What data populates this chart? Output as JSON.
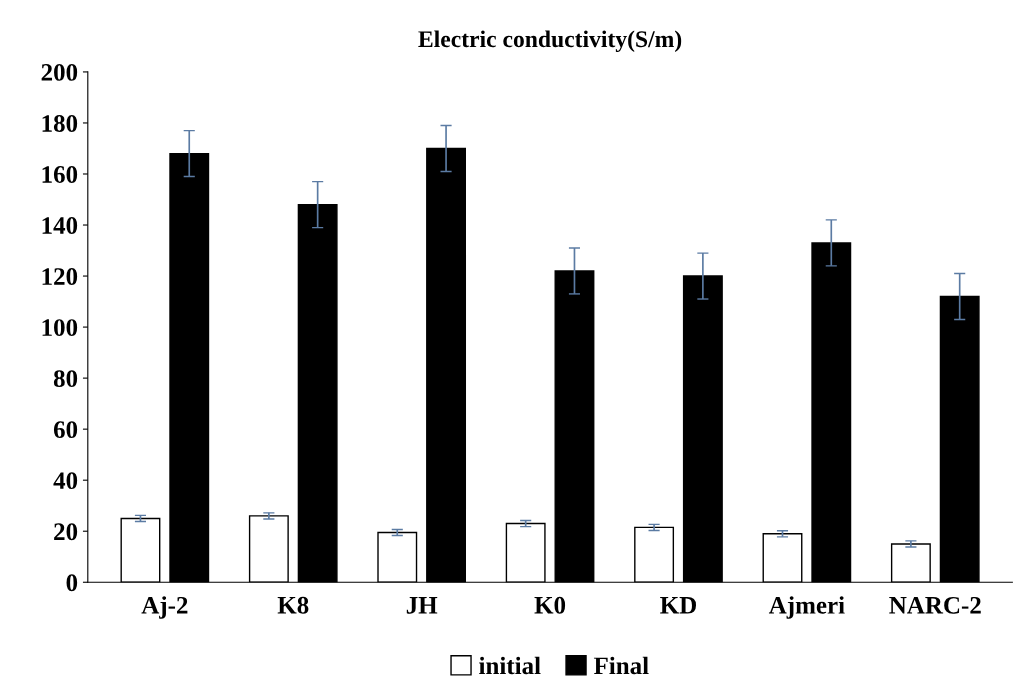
{
  "chart_data": {
    "type": "bar",
    "title": "Electric conductivity(S/m)",
    "categories": [
      "Aj-2",
      "K8",
      "JH",
      "K0",
      "KD",
      "Ajmeri",
      "NARC-2"
    ],
    "series": [
      {
        "name": "initial",
        "color": "#ffffff",
        "values": [
          25,
          26,
          19.5,
          23,
          21.5,
          19,
          15
        ],
        "errors": [
          1.2,
          1.2,
          1.2,
          1.2,
          1.2,
          1.2,
          1.2
        ]
      },
      {
        "name": "Final",
        "color": "#000000",
        "values": [
          168,
          148,
          170,
          122,
          120,
          133,
          112
        ],
        "errors": [
          9,
          9,
          9,
          9,
          9,
          9,
          9
        ]
      }
    ],
    "ylim": [
      0,
      200
    ],
    "yticks": [
      0,
      20,
      40,
      60,
      80,
      100,
      120,
      140,
      160,
      180,
      200
    ],
    "grid": false,
    "legend": "bottom"
  }
}
